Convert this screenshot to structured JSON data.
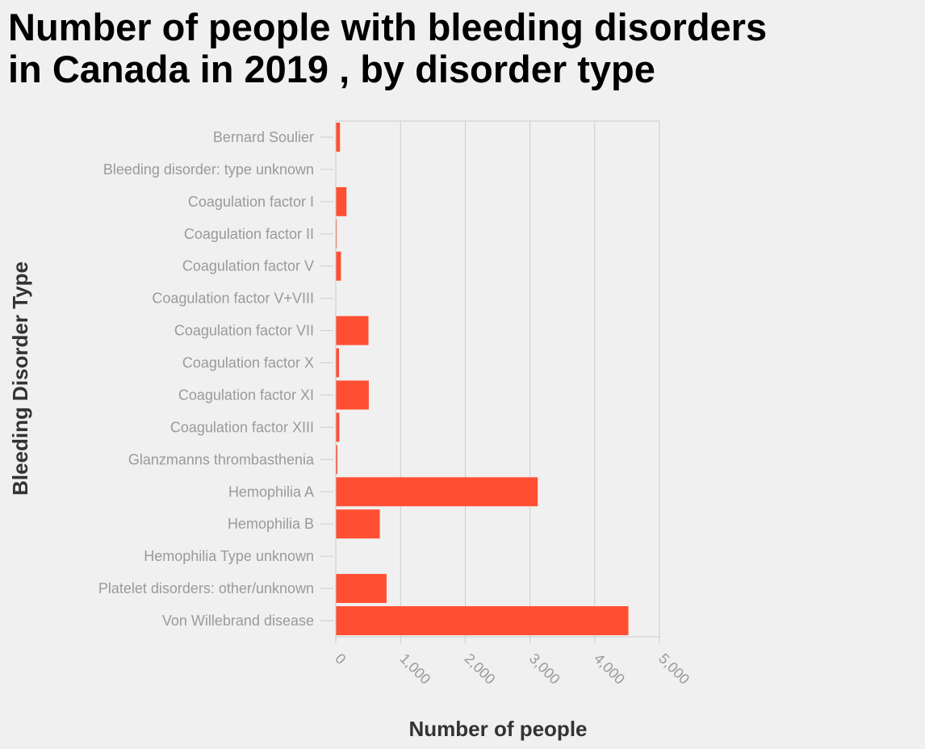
{
  "chart_data": {
    "type": "bar",
    "orientation": "horizontal",
    "title": "Number of people with bleeding disorders in Canada in 2019 , by disorder type",
    "title_lines": [
      "Number of people with bleeding disorders",
      "in Canada in 2019 , by disorder type"
    ],
    "xlabel": "Number of people",
    "ylabel": "Bleeding Disorder Type",
    "xlim": [
      0,
      5000
    ],
    "xticks": [
      0,
      1000,
      2000,
      3000,
      4000,
      5000
    ],
    "xtick_labels": [
      "0",
      "1,000",
      "2,000",
      "3,000",
      "4,000",
      "5,000"
    ],
    "grid": "vertical",
    "bar_color": "#ff4f32",
    "categories": [
      "Bernard Soulier",
      "Bleeding disorder: type unknown",
      "Coagulation factor I",
      "Coagulation factor II",
      "Coagulation factor V",
      "Coagulation factor V+VIII",
      "Coagulation factor VII",
      "Coagulation factor X",
      "Coagulation factor XI",
      "Coagulation factor XIII",
      "Glanzmanns thrombasthenia",
      "Hemophilia A",
      "Hemophilia B",
      "Hemophilia Type unknown",
      "Platelet disorders: other/unknown",
      "Von Willebrand disease"
    ],
    "values": [
      65,
      0,
      165,
      15,
      80,
      0,
      505,
      50,
      510,
      55,
      25,
      3120,
      680,
      0,
      785,
      4520
    ]
  }
}
